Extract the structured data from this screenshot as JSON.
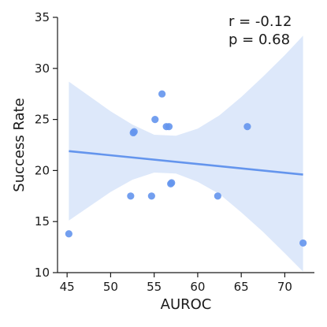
{
  "chart_data": {
    "type": "scatter",
    "title": "",
    "xlabel": "AUROC",
    "ylabel": "Success Rate",
    "xlim": [
      43.9,
      73.4
    ],
    "ylim": [
      10,
      35
    ],
    "xticks": [
      45,
      50,
      55,
      60,
      65,
      70
    ],
    "yticks": [
      10,
      15,
      20,
      25,
      30,
      35
    ],
    "grid": false,
    "colors": {
      "points": "#6495ED",
      "fit_line": "#6495ED",
      "ci_band": "#dde8fa"
    },
    "points": [
      {
        "x": 45.2,
        "y": 13.8
      },
      {
        "x": 52.3,
        "y": 17.5
      },
      {
        "x": 52.6,
        "y": 23.7
      },
      {
        "x": 52.7,
        "y": 23.8
      },
      {
        "x": 54.7,
        "y": 17.5
      },
      {
        "x": 55.1,
        "y": 25.0
      },
      {
        "x": 55.9,
        "y": 27.5
      },
      {
        "x": 56.4,
        "y": 24.3
      },
      {
        "x": 56.7,
        "y": 24.3
      },
      {
        "x": 56.9,
        "y": 18.7
      },
      {
        "x": 57.0,
        "y": 18.8
      },
      {
        "x": 62.3,
        "y": 17.5
      },
      {
        "x": 65.7,
        "y": 24.3
      },
      {
        "x": 72.1,
        "y": 12.9
      }
    ],
    "regression": {
      "x": [
        45.2,
        72.1
      ],
      "y": [
        21.9,
        19.6
      ]
    },
    "confidence_band": {
      "x": [
        45.2,
        50,
        52.5,
        55,
        57.5,
        60,
        62.5,
        65,
        67.5,
        70,
        72.1
      ],
      "upper": [
        28.7,
        25.8,
        24.5,
        23.5,
        23.4,
        24.1,
        25.4,
        27.2,
        29.2,
        31.3,
        33.2
      ],
      "lower": [
        15.1,
        17.9,
        19.1,
        19.8,
        19.7,
        18.9,
        17.7,
        15.9,
        14.0,
        11.9,
        10.1
      ]
    },
    "annotations": [
      "r = -0.12",
      "p = 0.68"
    ]
  }
}
